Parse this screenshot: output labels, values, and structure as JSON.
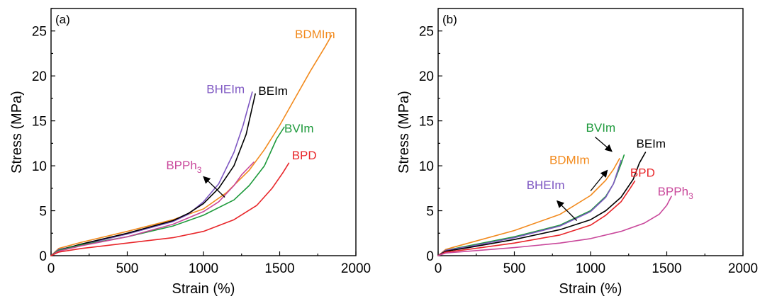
{
  "chart_data": [
    {
      "type": "line",
      "panel_label": "(a)",
      "xlabel": "Strain (%)",
      "ylabel": "Stress (MPa)",
      "xlim": [
        0,
        2000
      ],
      "ylim": [
        0,
        27.5
      ],
      "xticks": [
        0,
        500,
        1000,
        1500,
        2000
      ],
      "yticks": [
        0,
        5,
        10,
        15,
        20,
        25
      ],
      "grid": false,
      "series": [
        {
          "name": "BDMIm",
          "color": "#f28a1d",
          "x": [
            0,
            50,
            200,
            500,
            800,
            1000,
            1150,
            1300,
            1400,
            1500,
            1600,
            1700,
            1800,
            1840
          ],
          "y": [
            0,
            0.8,
            1.5,
            2.7,
            4.0,
            5.2,
            7.0,
            9.5,
            11.8,
            14.5,
            17.5,
            20.5,
            23.3,
            24.5
          ]
        },
        {
          "name": "BHEIm",
          "color": "#7e57c2",
          "x": [
            0,
            50,
            200,
            500,
            800,
            900,
            1000,
            1100,
            1200,
            1260,
            1320
          ],
          "y": [
            0,
            0.7,
            1.2,
            2.4,
            3.8,
            4.6,
            6.0,
            8.0,
            11.5,
            14.5,
            18.2
          ]
        },
        {
          "name": "BEIm",
          "color": "#000000",
          "x": [
            0,
            50,
            200,
            500,
            800,
            900,
            1000,
            1100,
            1200,
            1280,
            1340
          ],
          "y": [
            0,
            0.6,
            1.3,
            2.5,
            3.9,
            4.7,
            5.8,
            7.5,
            10.0,
            13.5,
            18.0
          ]
        },
        {
          "name": "BVIm",
          "color": "#1e9a3c",
          "x": [
            0,
            50,
            200,
            500,
            800,
            1000,
            1200,
            1300,
            1400,
            1480,
            1530
          ],
          "y": [
            0,
            0.6,
            1.2,
            2.1,
            3.3,
            4.5,
            6.2,
            7.8,
            10.0,
            13.0,
            14.3
          ]
        },
        {
          "name": "BPPh3",
          "color": "#c9489b",
          "x": [
            0,
            50,
            200,
            500,
            800,
            1000,
            1100,
            1200,
            1250,
            1330
          ],
          "y": [
            0,
            0.5,
            1.1,
            2.1,
            3.5,
            4.9,
            6.0,
            7.8,
            9.0,
            10.4
          ]
        },
        {
          "name": "BPD",
          "color": "#e8262a",
          "x": [
            0,
            50,
            200,
            500,
            800,
            1000,
            1200,
            1350,
            1450,
            1520,
            1560
          ],
          "y": [
            0,
            0.4,
            0.8,
            1.4,
            2.0,
            2.7,
            4.0,
            5.6,
            7.5,
            9.2,
            10.3
          ]
        }
      ],
      "labels": [
        {
          "text": "BDMIm",
          "color": "#f28a1d",
          "x": 1600,
          "y": 24.2
        },
        {
          "text": "BHEIm",
          "color": "#7e57c2",
          "x": 1020,
          "y": 18.1
        },
        {
          "text": "BEIm",
          "color": "#000000",
          "x": 1360,
          "y": 17.9
        },
        {
          "text": "BVIm",
          "color": "#1e9a3c",
          "x": 1530,
          "y": 13.7
        },
        {
          "text": "BPPh",
          "sub": "3",
          "color": "#c9489b",
          "x": 755,
          "y": 9.6
        },
        {
          "text": "BPD",
          "color": "#e8262a",
          "x": 1580,
          "y": 10.7
        }
      ],
      "arrows": [
        {
          "from": [
            1140,
            6.5
          ],
          "to": [
            1000,
            8.8
          ]
        }
      ]
    },
    {
      "type": "line",
      "panel_label": "(b)",
      "xlabel": "Strain (%)",
      "ylabel": "Stress (MPa)",
      "xlim": [
        0,
        2000
      ],
      "ylim": [
        0,
        27.5
      ],
      "xticks": [
        0,
        500,
        1000,
        1500,
        2000
      ],
      "yticks": [
        0,
        5,
        10,
        15,
        20,
        25
      ],
      "grid": false,
      "series": [
        {
          "name": "BDMIm",
          "color": "#f28a1d",
          "x": [
            0,
            50,
            200,
            500,
            800,
            1000,
            1100,
            1150,
            1190
          ],
          "y": [
            0,
            0.7,
            1.4,
            2.8,
            4.6,
            6.7,
            8.4,
            9.6,
            10.8
          ]
        },
        {
          "name": "BVIm",
          "color": "#1e9a3c",
          "x": [
            0,
            50,
            200,
            500,
            800,
            1000,
            1100,
            1150,
            1200,
            1220
          ],
          "y": [
            0,
            0.6,
            1.1,
            2.1,
            3.4,
            5.0,
            6.6,
            8.0,
            10.2,
            11.2
          ]
        },
        {
          "name": "BHEIm",
          "color": "#7e57c2",
          "x": [
            0,
            50,
            200,
            500,
            800,
            1000,
            1100,
            1150,
            1200
          ],
          "y": [
            0,
            0.6,
            1.0,
            2.0,
            3.3,
            4.9,
            6.5,
            8.0,
            10.6
          ]
        },
        {
          "name": "BEIm",
          "color": "#000000",
          "x": [
            0,
            50,
            200,
            500,
            800,
            1000,
            1100,
            1200,
            1280,
            1320,
            1360
          ],
          "y": [
            0,
            0.5,
            0.9,
            1.8,
            2.9,
            4.0,
            5.0,
            6.5,
            8.5,
            10.3,
            11.5
          ]
        },
        {
          "name": "BPD",
          "color": "#e8262a",
          "x": [
            0,
            50,
            200,
            500,
            800,
            1000,
            1100,
            1200,
            1260,
            1290
          ],
          "y": [
            0,
            0.4,
            0.7,
            1.4,
            2.3,
            3.4,
            4.5,
            6.0,
            7.5,
            8.3
          ]
        },
        {
          "name": "BPPh3",
          "color": "#c9489b",
          "x": [
            0,
            50,
            200,
            500,
            800,
            1000,
            1200,
            1350,
            1450,
            1500,
            1530
          ],
          "y": [
            0,
            0.3,
            0.5,
            0.9,
            1.4,
            1.9,
            2.7,
            3.6,
            4.6,
            5.6,
            6.6
          ]
        }
      ],
      "labels": [
        {
          "text": "BVIm",
          "color": "#1e9a3c",
          "x": 970,
          "y": 13.8
        },
        {
          "text": "BEIm",
          "color": "#000000",
          "x": 1300,
          "y": 12.0
        },
        {
          "text": "BDMIm",
          "color": "#f28a1d",
          "x": 730,
          "y": 10.2
        },
        {
          "text": "BPD",
          "color": "#e8262a",
          "x": 1260,
          "y": 8.8
        },
        {
          "text": "BHEIm",
          "color": "#7e57c2",
          "x": 580,
          "y": 7.4
        },
        {
          "text": "BPPh",
          "sub": "3",
          "color": "#c9489b",
          "x": 1440,
          "y": 6.7
        }
      ],
      "arrows": [
        {
          "from": [
            1030,
            13.2
          ],
          "to": [
            1140,
            11.6
          ]
        },
        {
          "from": [
            1000,
            7.2
          ],
          "to": [
            1110,
            9.5
          ]
        },
        {
          "from": [
            910,
            3.9
          ],
          "to": [
            780,
            6.1
          ]
        }
      ]
    }
  ]
}
